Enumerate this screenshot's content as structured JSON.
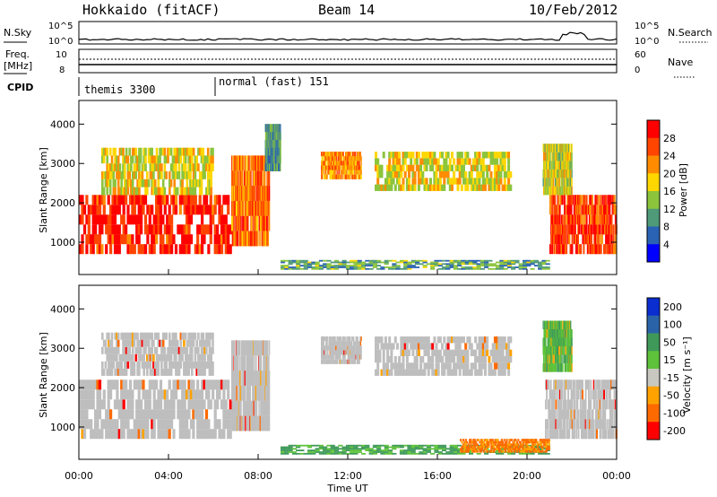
{
  "header": {
    "station": "Hokkaido (fitACF)",
    "beam": "Beam 14",
    "date": "10/Feb/2012"
  },
  "strip": {
    "nsky_label": "N.Sky",
    "nsky_top": "10^5",
    "nsky_bottom": "10^0",
    "nsearch_label": "N.Search",
    "nsearch_top": "10^5",
    "nsearch_bottom": "10^0",
    "freq_label": "Freq.",
    "freq_unit": "[MHz]",
    "freq_top": "10",
    "freq_bottom": "8",
    "nave_label": "Nave",
    "nave_top": "60",
    "nave_bottom": "0",
    "cpid_label": "CPID",
    "cpid_modes": [
      "themis 3300",
      "normal (fast) 151"
    ]
  },
  "colors": {
    "power": [
      "#0000ff",
      "#2a62b4",
      "#4f9a78",
      "#8cc43c",
      "#ffd700",
      "#ff8c00",
      "#ff4500",
      "#ff0000"
    ],
    "velocity": [
      "#ff0000",
      "#ff6a00",
      "#ffa200",
      "#c8c8c0",
      "#5ec23a",
      "#3f9a5a",
      "#2b63a8",
      "#0a2ed0"
    ],
    "ground_scatter": "#bebebe"
  },
  "chart_data": [
    {
      "type": "heatmap",
      "panel": "power",
      "xlabel": "Time UT",
      "ylabel": "Slant Range [km]",
      "x_ticks": [
        "00:00",
        "04:00",
        "08:00",
        "12:00",
        "16:00",
        "20:00",
        "00:00"
      ],
      "xlim_hours": [
        0,
        24
      ],
      "y_ticks": [
        "1000",
        "2000",
        "3000",
        "4000"
      ],
      "ylim": [
        180,
        4600
      ],
      "colorbar": {
        "label": "Power [dB]",
        "ticks": [
          "4",
          "8",
          "12",
          "16",
          "20",
          "24",
          "28"
        ],
        "range": [
          0,
          32
        ]
      },
      "regions": [
        {
          "t0": 0.0,
          "t1": 6.8,
          "r0": 700,
          "r1": 2200,
          "level": 0.9
        },
        {
          "t0": 1.0,
          "t1": 6.0,
          "r0": 2200,
          "r1": 3400,
          "level": 0.55
        },
        {
          "t0": 6.8,
          "t1": 8.5,
          "r0": 900,
          "r1": 3200,
          "level": 0.75
        },
        {
          "t0": 8.3,
          "t1": 9.0,
          "r0": 2800,
          "r1": 4000,
          "level": 0.3
        },
        {
          "t0": 10.8,
          "t1": 12.6,
          "r0": 2600,
          "r1": 3300,
          "level": 0.7
        },
        {
          "t0": 13.2,
          "t1": 19.3,
          "r0": 2300,
          "r1": 3300,
          "level": 0.55
        },
        {
          "t0": 9.0,
          "t1": 21.0,
          "r0": 300,
          "r1": 550,
          "level": 0.35
        },
        {
          "t0": 21.0,
          "t1": 24.0,
          "r0": 700,
          "r1": 2200,
          "level": 0.85
        },
        {
          "t0": 20.7,
          "t1": 22.0,
          "r0": 2200,
          "r1": 3500,
          "level": 0.5
        }
      ]
    },
    {
      "type": "heatmap",
      "panel": "velocity",
      "xlabel": "Time UT",
      "ylabel": "Slant Range [km]",
      "x_ticks": [
        "00:00",
        "04:00",
        "08:00",
        "12:00",
        "16:00",
        "20:00",
        "00:00"
      ],
      "xlim_hours": [
        0,
        24
      ],
      "y_ticks": [
        "1000",
        "2000",
        "3000",
        "4000"
      ],
      "ylim": [
        180,
        4600
      ],
      "colorbar": {
        "label": "Velocity [m s⁻¹]",
        "ticks": [
          "200",
          "100",
          "50",
          "15",
          "-15",
          "-50",
          "-100",
          "-200"
        ],
        "range": [
          -300,
          300
        ]
      },
      "regions": [
        {
          "t0": 0.0,
          "t1": 6.8,
          "r0": 700,
          "r1": 2200,
          "level": 0.0,
          "kind": "ground"
        },
        {
          "t0": 1.0,
          "t1": 6.0,
          "r0": 2300,
          "r1": 3400,
          "level": 0.0,
          "kind": "ground"
        },
        {
          "t0": 6.8,
          "t1": 8.5,
          "r0": 900,
          "r1": 3200,
          "level": 0.0,
          "kind": "ground"
        },
        {
          "t0": 10.8,
          "t1": 12.6,
          "r0": 2600,
          "r1": 3300,
          "level": 0.0,
          "kind": "ground"
        },
        {
          "t0": 13.2,
          "t1": 19.3,
          "r0": 2300,
          "r1": 3300,
          "level": 0.1,
          "kind": "ground"
        },
        {
          "t0": 9.0,
          "t1": 21.0,
          "r0": 300,
          "r1": 550,
          "level": 60,
          "kind": "iono"
        },
        {
          "t0": 17.0,
          "t1": 21.0,
          "r0": 350,
          "r1": 700,
          "level": -60,
          "kind": "iono"
        },
        {
          "t0": 20.8,
          "t1": 24.0,
          "r0": 700,
          "r1": 2200,
          "level": 0.0,
          "kind": "ground"
        },
        {
          "t0": 20.7,
          "t1": 22.0,
          "r0": 2400,
          "r1": 3700,
          "level": 40,
          "kind": "iono"
        }
      ]
    }
  ]
}
